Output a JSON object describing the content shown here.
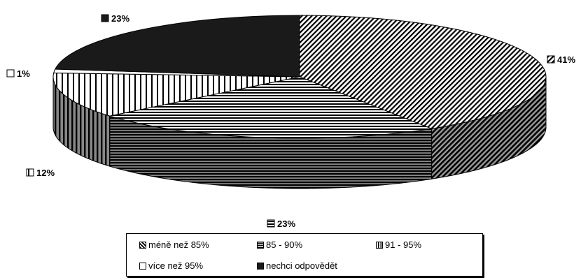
{
  "chart_data": {
    "type": "pie",
    "title": "",
    "slices": [
      {
        "label": "méně než 85%",
        "value": 41,
        "display": "41%",
        "color": "#000000",
        "pattern": "diagonal"
      },
      {
        "label": "85 - 90%",
        "value": 23,
        "display": "23%",
        "color": "#000000",
        "pattern": "horizontal"
      },
      {
        "label": "91 - 95%",
        "value": 12,
        "display": "12%",
        "color": "#000000",
        "pattern": "vertical"
      },
      {
        "label": "více než 95%",
        "value": 1,
        "display": "1%",
        "color": "#ffffff",
        "pattern": "none"
      },
      {
        "label": "nechci odpovědět",
        "value": 23,
        "display": "23%",
        "color": "#1a1a1a",
        "pattern": "solid"
      }
    ],
    "legend_position": "bottom"
  }
}
